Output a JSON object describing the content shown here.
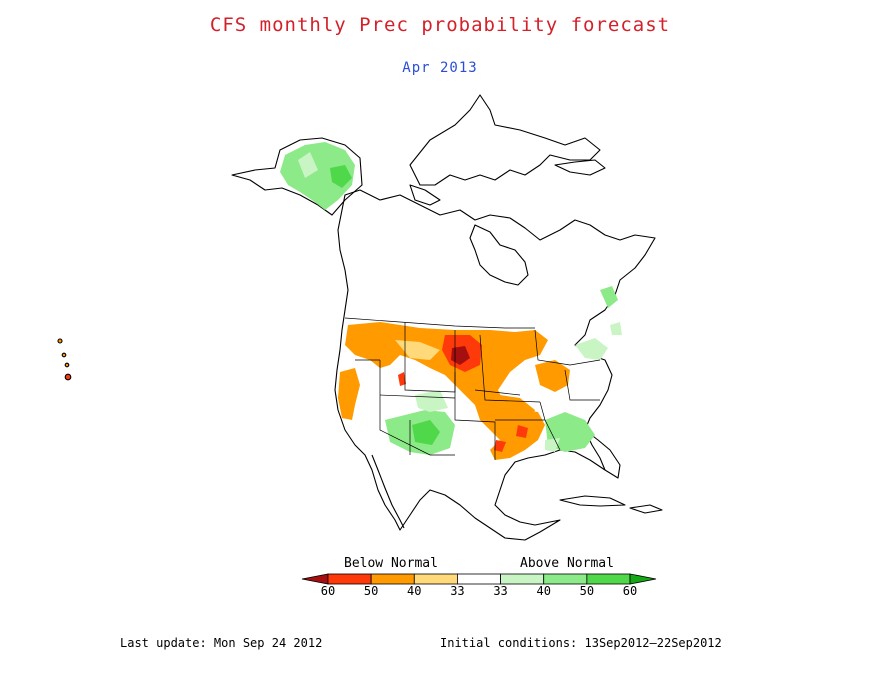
{
  "title": "CFS monthly Prec probability forecast",
  "subtitle": "Apr 2013",
  "legend": {
    "below_label": "Below Normal",
    "above_label": "Above Normal",
    "ticks": [
      "60",
      "50",
      "40",
      "33",
      "33",
      "40",
      "50",
      "60"
    ],
    "colors": [
      "#a50f0f",
      "#ff3a0a",
      "#ff9a00",
      "#ffd97a",
      "#ffffff",
      "#c9f5c4",
      "#8cea88",
      "#4fd84a",
      "#14a814"
    ]
  },
  "footer": {
    "last_update": "Last update: Mon Sep 24 2012",
    "initial_conditions": "Initial conditions: 13Sep2012–22Sep2012"
  }
}
